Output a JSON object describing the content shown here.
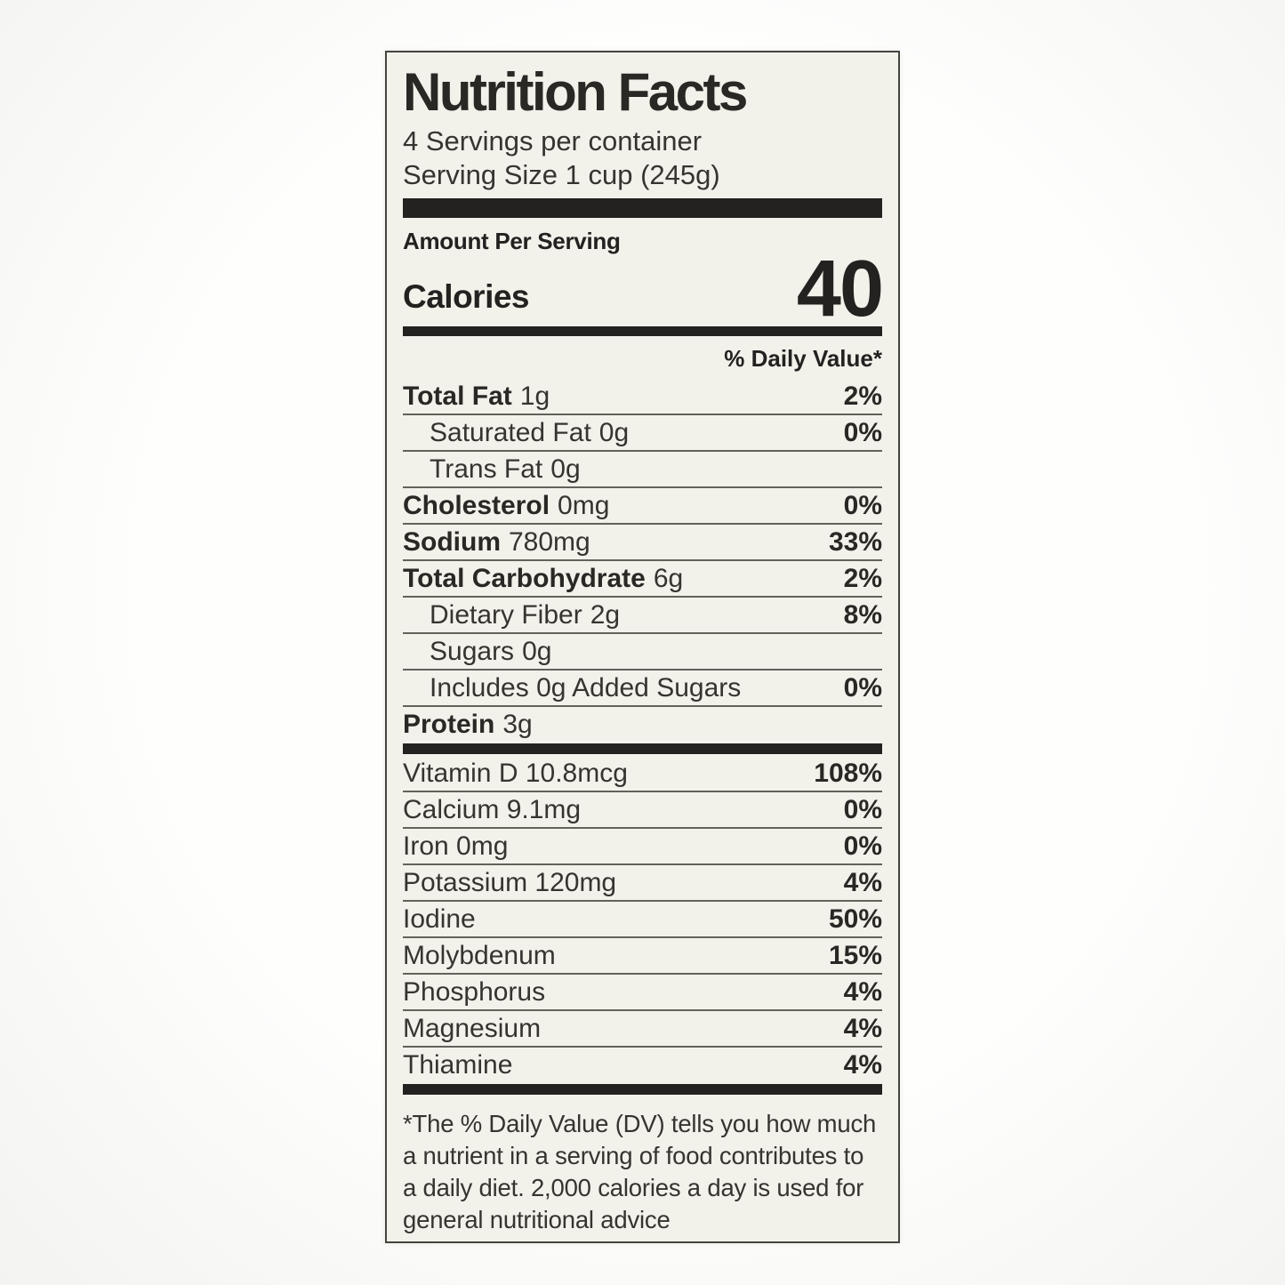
{
  "label": {
    "title": "Nutrition Facts",
    "servings_per_container": "4 Servings per container",
    "serving_size": "Serving Size 1 cup (245g)",
    "amount_per_serving": "Amount Per Serving",
    "calories": {
      "label": "Calories",
      "value": "40"
    },
    "daily_value_header": "% Daily Value*",
    "colors": {
      "label_background": "#f2f1ea",
      "bar_black": "#232220",
      "text": "#292825",
      "hairline": "#63625a"
    },
    "nutrients": [
      {
        "name": "Total Fat",
        "amount": "1g",
        "dv": "2%",
        "bold": true,
        "indent": 0
      },
      {
        "name": "Saturated Fat",
        "amount": "0g",
        "dv": "0%",
        "bold": false,
        "indent": 1
      },
      {
        "name": "Trans Fat",
        "amount": "0g",
        "dv": "",
        "bold": false,
        "indent": 1
      },
      {
        "name": "Cholesterol",
        "amount": "0mg",
        "dv": "0%",
        "bold": true,
        "indent": 0
      },
      {
        "name": "Sodium",
        "amount": "780mg",
        "dv": "33%",
        "bold": true,
        "indent": 0
      },
      {
        "name": "Total Carbohydrate",
        "amount": "6g",
        "dv": "2%",
        "bold": true,
        "indent": 0
      },
      {
        "name": "Dietary Fiber",
        "amount": "2g",
        "dv": "8%",
        "bold": false,
        "indent": 1
      },
      {
        "name": "Sugars",
        "amount": "0g",
        "dv": "",
        "bold": false,
        "indent": 1
      },
      {
        "name": "Includes 0g Added Sugars",
        "amount": "",
        "dv": "0%",
        "bold": false,
        "indent": 1
      },
      {
        "name": "Protein",
        "amount": "3g",
        "dv": "",
        "bold": true,
        "indent": 0
      }
    ],
    "micronutrients": [
      {
        "name": "Vitamin D 10.8mcg",
        "dv": "108%"
      },
      {
        "name": "Calcium 9.1mg",
        "dv": "0%"
      },
      {
        "name": "Iron 0mg",
        "dv": "0%"
      },
      {
        "name": "Potassium 120mg",
        "dv": "4%"
      },
      {
        "name": "Iodine",
        "dv": "50%"
      },
      {
        "name": "Molybdenum",
        "dv": "15%"
      },
      {
        "name": "Phosphorus",
        "dv": "4%"
      },
      {
        "name": "Magnesium",
        "dv": "4%"
      },
      {
        "name": "Thiamine",
        "dv": "4%"
      }
    ],
    "footnote": "*The % Daily Value (DV) tells you how much a nutrient in a serving of food contributes to a daily diet. 2,000 calories a day is used for general nutritional advice"
  }
}
